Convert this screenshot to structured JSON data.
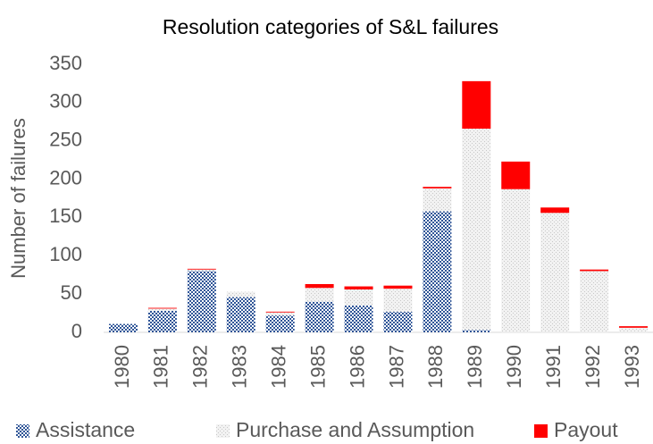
{
  "chart_data": {
    "type": "bar",
    "stacked": true,
    "title": "Resolution categories of S&L failures",
    "y_label": "Number of failures",
    "categories": [
      "1980",
      "1981",
      "1982",
      "1983",
      "1984",
      "1985",
      "1986",
      "1987",
      "1988",
      "1989",
      "1990",
      "1991",
      "1992",
      "1993"
    ],
    "series": [
      {
        "name": "Assistance",
        "color": "#2f5597",
        "values": [
          11,
          28,
          80,
          46,
          22,
          40,
          35,
          27,
          158,
          3,
          0,
          0,
          0,
          0
        ]
      },
      {
        "name": "Purchase and Assumption",
        "color": "#c8c8c8",
        "values": [
          0,
          3,
          2,
          7,
          4,
          18,
          21,
          30,
          30,
          263,
          187,
          156,
          80,
          6
        ]
      },
      {
        "name": "Payout",
        "color": "#ff0000",
        "values": [
          0,
          1,
          1,
          0,
          1,
          5,
          4,
          4,
          2,
          62,
          36,
          7,
          2,
          2
        ]
      }
    ],
    "ylim": [
      0,
      350
    ],
    "yticks": [
      0,
      50,
      100,
      150,
      200,
      250,
      300,
      350
    ],
    "grid": false
  }
}
